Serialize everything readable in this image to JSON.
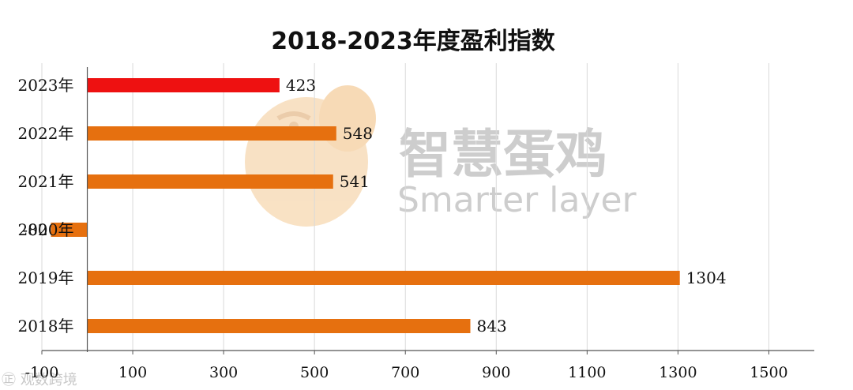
{
  "chart_data": {
    "type": "bar",
    "orientation": "horizontal",
    "title": "2018-2023年度盈利指数",
    "categories": [
      "2023年",
      "2022年",
      "2021年",
      "2020年",
      "2019年",
      "2018年"
    ],
    "values": [
      423,
      548,
      541,
      -80,
      1304,
      843
    ],
    "value_labels": [
      "423",
      "548",
      "541",
      "-80",
      "1304",
      "843"
    ],
    "xlim": [
      -100,
      1600
    ],
    "xticks": [
      -100,
      100,
      300,
      500,
      700,
      900,
      1100,
      1300,
      1500
    ],
    "tick_labels": [
      "-100",
      "100",
      "300",
      "500",
      "700",
      "900",
      "1100",
      "1300",
      "1500"
    ],
    "grid": true,
    "legend": "none",
    "colors": {
      "highlight": "#ee1111",
      "default": "#e6700f",
      "grid": "#d9d9d9",
      "axis": "#555555"
    }
  },
  "watermark": {
    "brand_cn": "智慧蛋鸡",
    "brand_en": "Smarter layer",
    "corner": "㊣ 观数跨境"
  }
}
